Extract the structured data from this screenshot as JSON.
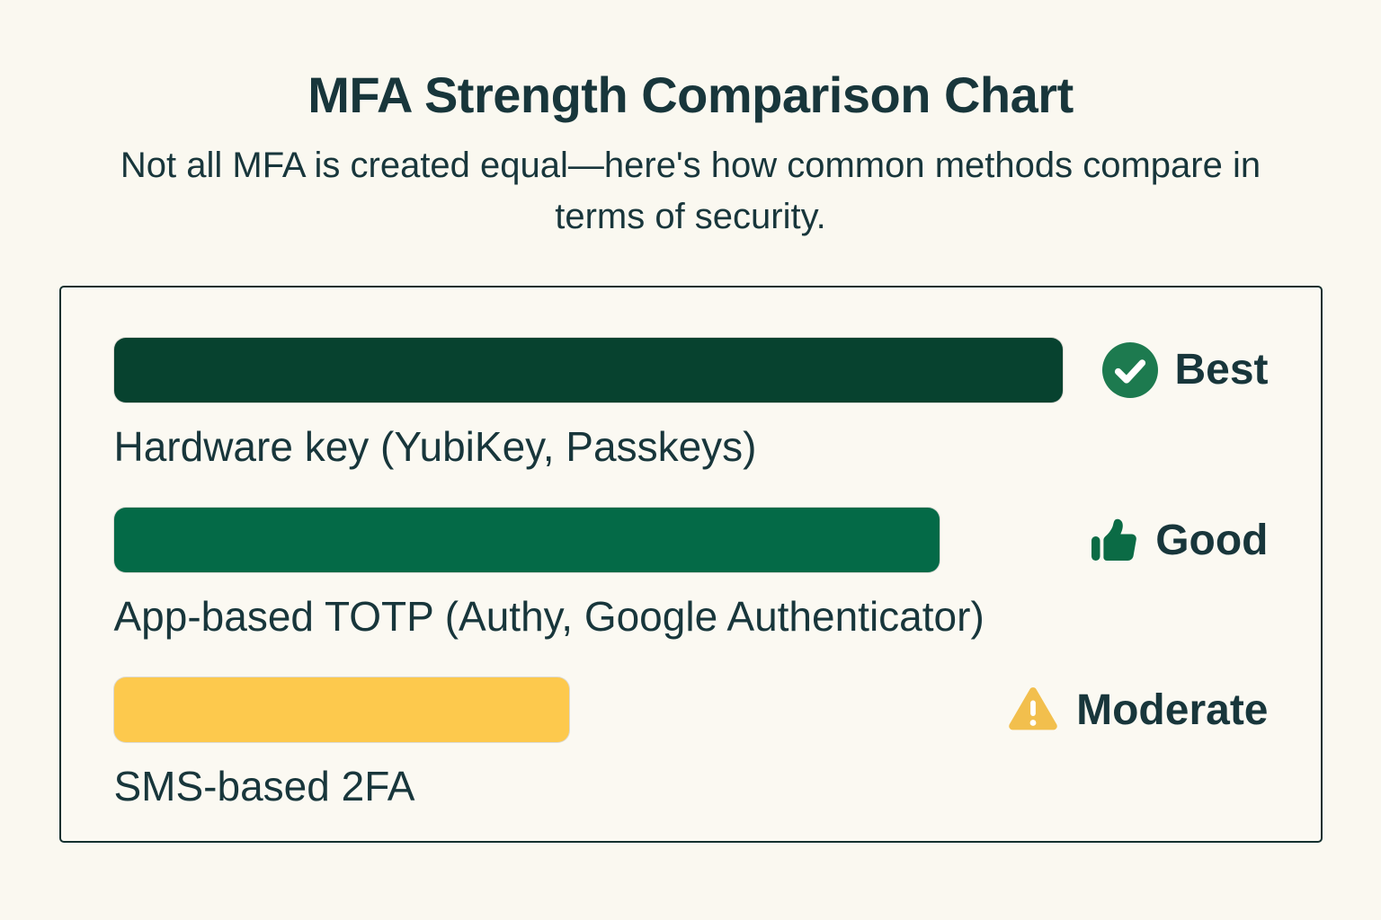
{
  "colors": {
    "page_bg": "#FAF8F0",
    "panel_bg": "#FBF9F2",
    "panel_border": "#14302F",
    "text": "#18363B",
    "bar_best": "#07422F",
    "bar_good": "#046A47",
    "bar_moderate": "#FDC94D",
    "icon_best": "#1D7A4F",
    "icon_good": "#0B6B45",
    "icon_moderate": "#F2BF4D"
  },
  "chart_data": {
    "type": "bar",
    "orientation": "horizontal",
    "title": "MFA Strength Comparison Chart",
    "subtitle": "Not all MFA is created equal—here's how common methods compare in terms of security.",
    "xlim": [
      0,
      100
    ],
    "grid": false,
    "legend": false,
    "categories": [
      "Hardware key (YubiKey, Passkeys)",
      "App-based TOTP (Authy, Google Authenticator)",
      "SMS-based 2FA"
    ],
    "values": [
      100,
      87,
      48
    ],
    "rows": [
      {
        "label": "Hardware key (YubiKey, Passkeys)",
        "value": 100,
        "rating": "Best",
        "icon": "check-circle-icon",
        "bar_color": "#07422F",
        "icon_color": "#1D7A4F"
      },
      {
        "label": "App-based TOTP (Authy, Google Authenticator)",
        "value": 87,
        "rating": "Good",
        "icon": "thumbs-up-icon",
        "bar_color": "#046A47",
        "icon_color": "#0B6B45"
      },
      {
        "label": "SMS-based 2FA",
        "value": 48,
        "rating": "Moderate",
        "icon": "warning-triangle-icon",
        "bar_color": "#FDC94D",
        "icon_color": "#F2BF4D"
      }
    ]
  }
}
